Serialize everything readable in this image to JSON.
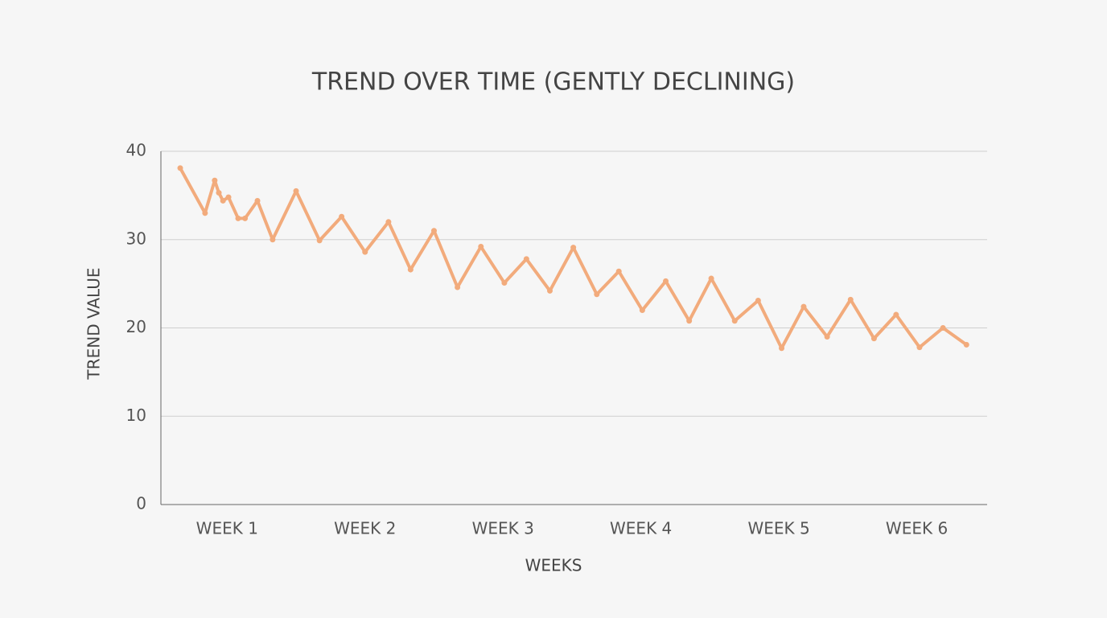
{
  "chart_data": {
    "type": "line",
    "title": "TREND OVER TIME (GENTLY DECLINING)",
    "x_label": "WEEKS",
    "y_label": "TREND VALUE",
    "x": [
      0.66,
      0.84,
      0.91,
      0.94,
      0.97,
      1.01,
      1.08,
      1.13,
      1.22,
      1.33,
      1.5,
      1.67,
      1.83,
      2.0,
      2.17,
      2.33,
      2.5,
      2.67,
      2.84,
      3.01,
      3.17,
      3.34,
      3.51,
      3.68,
      3.84,
      4.01,
      4.18,
      4.35,
      4.51,
      4.68,
      4.85,
      5.02,
      5.18,
      5.35,
      5.52,
      5.69,
      5.85,
      6.02,
      6.19,
      6.36
    ],
    "series": [
      {
        "name": "Trend",
        "color": "#f2ab7c",
        "values": [
          38.1,
          33.0,
          36.7,
          35.3,
          34.4,
          34.8,
          32.4,
          32.4,
          34.4,
          30.0,
          35.5,
          29.9,
          32.6,
          28.6,
          32.0,
          26.6,
          31.0,
          24.6,
          29.2,
          25.1,
          27.8,
          24.2,
          29.1,
          23.8,
          26.4,
          22.0,
          25.3,
          20.8,
          25.6,
          20.8,
          23.1,
          17.7,
          22.4,
          19.0,
          23.2,
          18.8,
          21.5,
          17.8,
          20.0,
          18.1
        ]
      }
    ],
    "xlim": [
      0.52,
      6.51
    ],
    "xticks": [
      {
        "value": 1,
        "label": "WEEK 1"
      },
      {
        "value": 2,
        "label": "WEEK 2"
      },
      {
        "value": 3,
        "label": "WEEK 3"
      },
      {
        "value": 4,
        "label": "WEEK 4"
      },
      {
        "value": 5,
        "label": "WEEK 5"
      },
      {
        "value": 6,
        "label": "WEEK 6"
      }
    ],
    "ylim": [
      0,
      40
    ],
    "yticks": [
      0,
      10,
      20,
      30,
      40
    ],
    "grid": true
  }
}
